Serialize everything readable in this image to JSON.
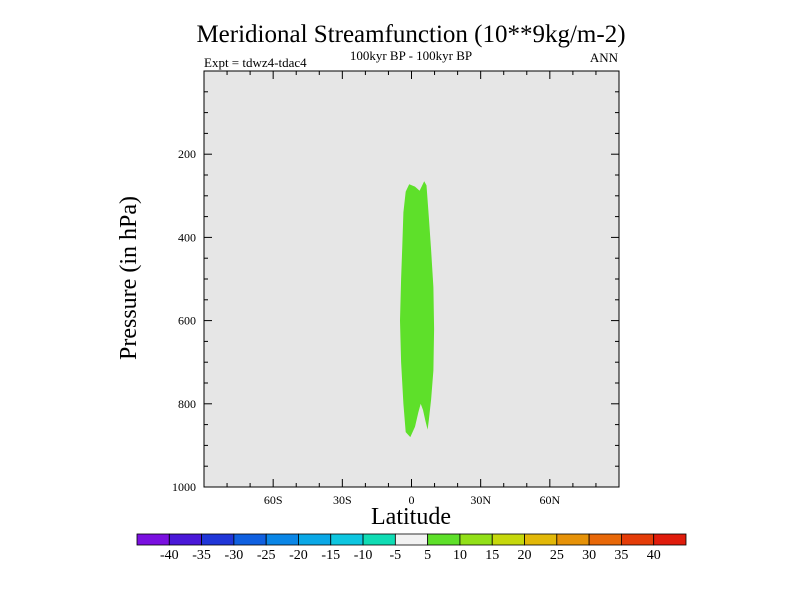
{
  "chart_data": {
    "type": "heatmap",
    "title": "Meridional Streamfunction (10**9kg/m-2)",
    "subtitle": "100kyr BP - 100kyr BP",
    "left_label": "Expt = tdwz4-tdac4",
    "right_label": "ANN",
    "xlabel": "Latitude",
    "ylabel": "Pressure (in hPa)",
    "xlim": [
      -90,
      90
    ],
    "ylim": [
      1000,
      0
    ],
    "y_scale": "linear, reversed",
    "grid": false,
    "background_color": "#e6e6e6",
    "x_ticks": [
      {
        "value": -60,
        "label": "60S"
      },
      {
        "value": -30,
        "label": "30S"
      },
      {
        "value": 0,
        "label": "0"
      },
      {
        "value": 30,
        "label": "30N"
      },
      {
        "value": 60,
        "label": "60N"
      }
    ],
    "y_ticks": [
      {
        "value": 200,
        "label": "200"
      },
      {
        "value": 400,
        "label": "400"
      },
      {
        "value": 600,
        "label": "600"
      },
      {
        "value": 800,
        "label": "800"
      },
      {
        "value": 1000,
        "label": "1000"
      }
    ],
    "shaded_regions": [
      {
        "level_range": [
          5,
          10
        ],
        "color": "#5ee02a",
        "outline": [
          [
            -3.5,
            340
          ],
          [
            -2.5,
            290
          ],
          [
            -1,
            272
          ],
          [
            1.5,
            278
          ],
          [
            3.5,
            288
          ],
          [
            5.5,
            265
          ],
          [
            6.5,
            275
          ],
          [
            7.5,
            350
          ],
          [
            8.5,
            430
          ],
          [
            9.5,
            520
          ],
          [
            9.8,
            620
          ],
          [
            9.5,
            720
          ],
          [
            8.5,
            790
          ],
          [
            7.5,
            840
          ],
          [
            7,
            862
          ],
          [
            6,
            840
          ],
          [
            5,
            815
          ],
          [
            4,
            800
          ],
          [
            3,
            820
          ],
          [
            1.5,
            855
          ],
          [
            -0.5,
            880
          ],
          [
            -2.5,
            868
          ],
          [
            -3.5,
            800
          ],
          [
            -4.5,
            700
          ],
          [
            -5,
            600
          ],
          [
            -4.5,
            500
          ],
          [
            -4,
            420
          ]
        ]
      }
    ],
    "colorbar": {
      "levels": [
        "-40",
        "-35",
        "-30",
        "-25",
        "-20",
        "-15",
        "-10",
        "-5",
        "5",
        "10",
        "15",
        "20",
        "25",
        "30",
        "35",
        "40"
      ],
      "colors": [
        "#7a10e0",
        "#4a18d8",
        "#2036d8",
        "#1060e0",
        "#0a86e6",
        "#0aa8e6",
        "#0ec6e0",
        "#10dcb4",
        "#f2f2f2",
        "#5ee02a",
        "#92e018",
        "#c6d80c",
        "#e2b808",
        "#e69208",
        "#e86808",
        "#e43c08",
        "#e01c0c"
      ]
    }
  }
}
